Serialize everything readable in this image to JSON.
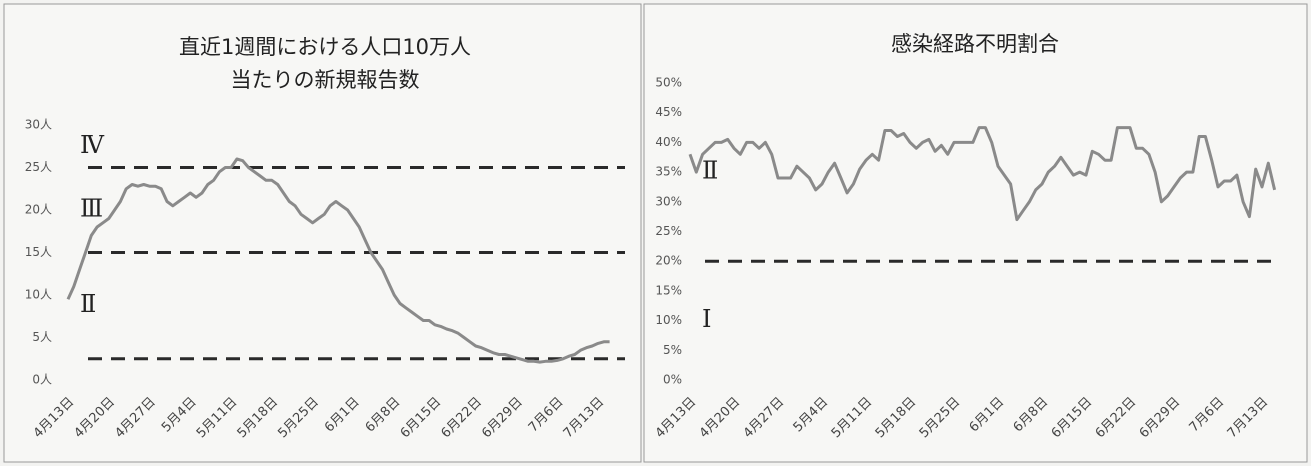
{
  "chart_data": [
    {
      "type": "line",
      "title": [
        "直近1週間における人口10万人",
        "当たりの新規報告数"
      ],
      "categories": [
        "4月13日",
        null,
        null,
        null,
        null,
        null,
        null,
        "4月20日",
        null,
        null,
        null,
        null,
        null,
        null,
        "4月27日",
        null,
        null,
        null,
        null,
        null,
        null,
        "5月4日",
        null,
        null,
        null,
        null,
        null,
        null,
        "5月11日",
        null,
        null,
        null,
        null,
        null,
        null,
        "5月18日",
        null,
        null,
        null,
        null,
        null,
        null,
        "5月25日",
        null,
        null,
        null,
        null,
        null,
        null,
        "6月1日",
        null,
        null,
        null,
        null,
        null,
        null,
        "6月8日",
        null,
        null,
        null,
        null,
        null,
        null,
        "6月15日",
        null,
        null,
        null,
        null,
        null,
        null,
        "6月22日",
        null,
        null,
        null,
        null,
        null,
        null,
        "6月29日",
        null,
        null,
        null,
        null,
        null,
        null,
        "7月6日",
        null,
        null,
        null,
        null,
        null,
        null,
        "7月13日",
        null,
        null
      ],
      "series": [
        {
          "color": "#8a8a8a",
          "values": [
            9.5,
            11,
            13,
            15,
            17,
            18,
            18.5,
            19,
            20,
            21,
            22.5,
            23,
            22.8,
            23,
            22.8,
            22.8,
            22.5,
            21,
            20.5,
            21,
            21.5,
            22,
            21.5,
            22,
            23,
            23.5,
            24.5,
            25,
            25,
            26,
            25.8,
            25,
            24.5,
            24,
            23.5,
            23.5,
            23,
            22,
            21,
            20.5,
            19.5,
            19,
            18.5,
            19,
            19.5,
            20.5,
            21,
            20.5,
            20,
            19,
            18,
            16.5,
            15,
            14,
            13,
            11.5,
            10,
            9,
            8.5,
            8,
            7.5,
            7,
            7,
            6.5,
            6.3,
            6,
            5.8,
            5.5,
            5,
            4.5,
            4,
            3.8,
            3.5,
            3.2,
            3,
            3,
            2.8,
            2.6,
            2.4,
            2.2,
            2.2,
            2.1,
            2.2,
            2.2,
            2.3,
            2.5,
            2.8,
            3,
            3.5,
            3.8,
            4,
            4.3,
            4.5,
            4.5
          ]
        }
      ],
      "ylim": [
        0,
        30
      ],
      "yticks": [
        {
          "value": 0,
          "label": "0人"
        },
        {
          "value": 5,
          "label": "5人"
        },
        {
          "value": 10,
          "label": "10人"
        },
        {
          "value": 15,
          "label": "15人"
        },
        {
          "value": 20,
          "label": "20人"
        },
        {
          "value": 25,
          "label": "25人"
        },
        {
          "value": 30,
          "label": "30人"
        }
      ],
      "reference_lines": [
        2.5,
        15,
        25
      ],
      "zones": [
        null,
        "Ⅱ",
        "Ⅲ",
        "Ⅳ"
      ]
    },
    {
      "type": "line",
      "title": [
        "感染経路不明割合"
      ],
      "categories": [
        "4月13日",
        null,
        null,
        null,
        null,
        null,
        null,
        "4月20日",
        null,
        null,
        null,
        null,
        null,
        null,
        "4月27日",
        null,
        null,
        null,
        null,
        null,
        null,
        "5月4日",
        null,
        null,
        null,
        null,
        null,
        null,
        "5月11日",
        null,
        null,
        null,
        null,
        null,
        null,
        "5月18日",
        null,
        null,
        null,
        null,
        null,
        null,
        "5月25日",
        null,
        null,
        null,
        null,
        null,
        null,
        "6月1日",
        null,
        null,
        null,
        null,
        null,
        null,
        "6月8日",
        null,
        null,
        null,
        null,
        null,
        null,
        "6月15日",
        null,
        null,
        null,
        null,
        null,
        null,
        "6月22日",
        null,
        null,
        null,
        null,
        null,
        null,
        "6月29日",
        null,
        null,
        null,
        null,
        null,
        null,
        "7月6日",
        null,
        null,
        null,
        null,
        null,
        null,
        "7月13日",
        null,
        null
      ],
      "series": [
        {
          "color": "#8a8a8a",
          "values": [
            38,
            35,
            38,
            39,
            40,
            40,
            40.5,
            39,
            38,
            40,
            40,
            39,
            40,
            38,
            34,
            34,
            34,
            36,
            35,
            34,
            32,
            33,
            35,
            36.5,
            34,
            31.5,
            33,
            35.5,
            37,
            38,
            37,
            42,
            42,
            41,
            41.5,
            40,
            39,
            40,
            40.5,
            38.5,
            39.5,
            38,
            40,
            40,
            40,
            40,
            42.5,
            42.5,
            40,
            36,
            34.5,
            33,
            27,
            28.5,
            30,
            32,
            33,
            35,
            36,
            37.5,
            36,
            34.5,
            35,
            34.5,
            38.5,
            38,
            37,
            37,
            42.5,
            42.5,
            42.5,
            39,
            39,
            38,
            35,
            30,
            31,
            32.5,
            34,
            35,
            35,
            41,
            41,
            37,
            32.5,
            33.5,
            33.5,
            34.5,
            30,
            27.5,
            35.5,
            32.5,
            36.5,
            32
          ]
        }
      ],
      "ylim": [
        0,
        50
      ],
      "yticks": [
        {
          "value": 0,
          "label": "0%"
        },
        {
          "value": 5,
          "label": "5%"
        },
        {
          "value": 10,
          "label": "10%"
        },
        {
          "value": 15,
          "label": "15%"
        },
        {
          "value": 20,
          "label": "20%"
        },
        {
          "value": 25,
          "label": "25%"
        },
        {
          "value": 30,
          "label": "30%"
        },
        {
          "value": 35,
          "label": "35%"
        },
        {
          "value": 40,
          "label": "40%"
        },
        {
          "value": 45,
          "label": "45%"
        },
        {
          "value": 50,
          "label": "50%"
        }
      ],
      "reference_lines": [
        20
      ],
      "zones": [
        "Ⅰ",
        "Ⅱ"
      ]
    }
  ]
}
